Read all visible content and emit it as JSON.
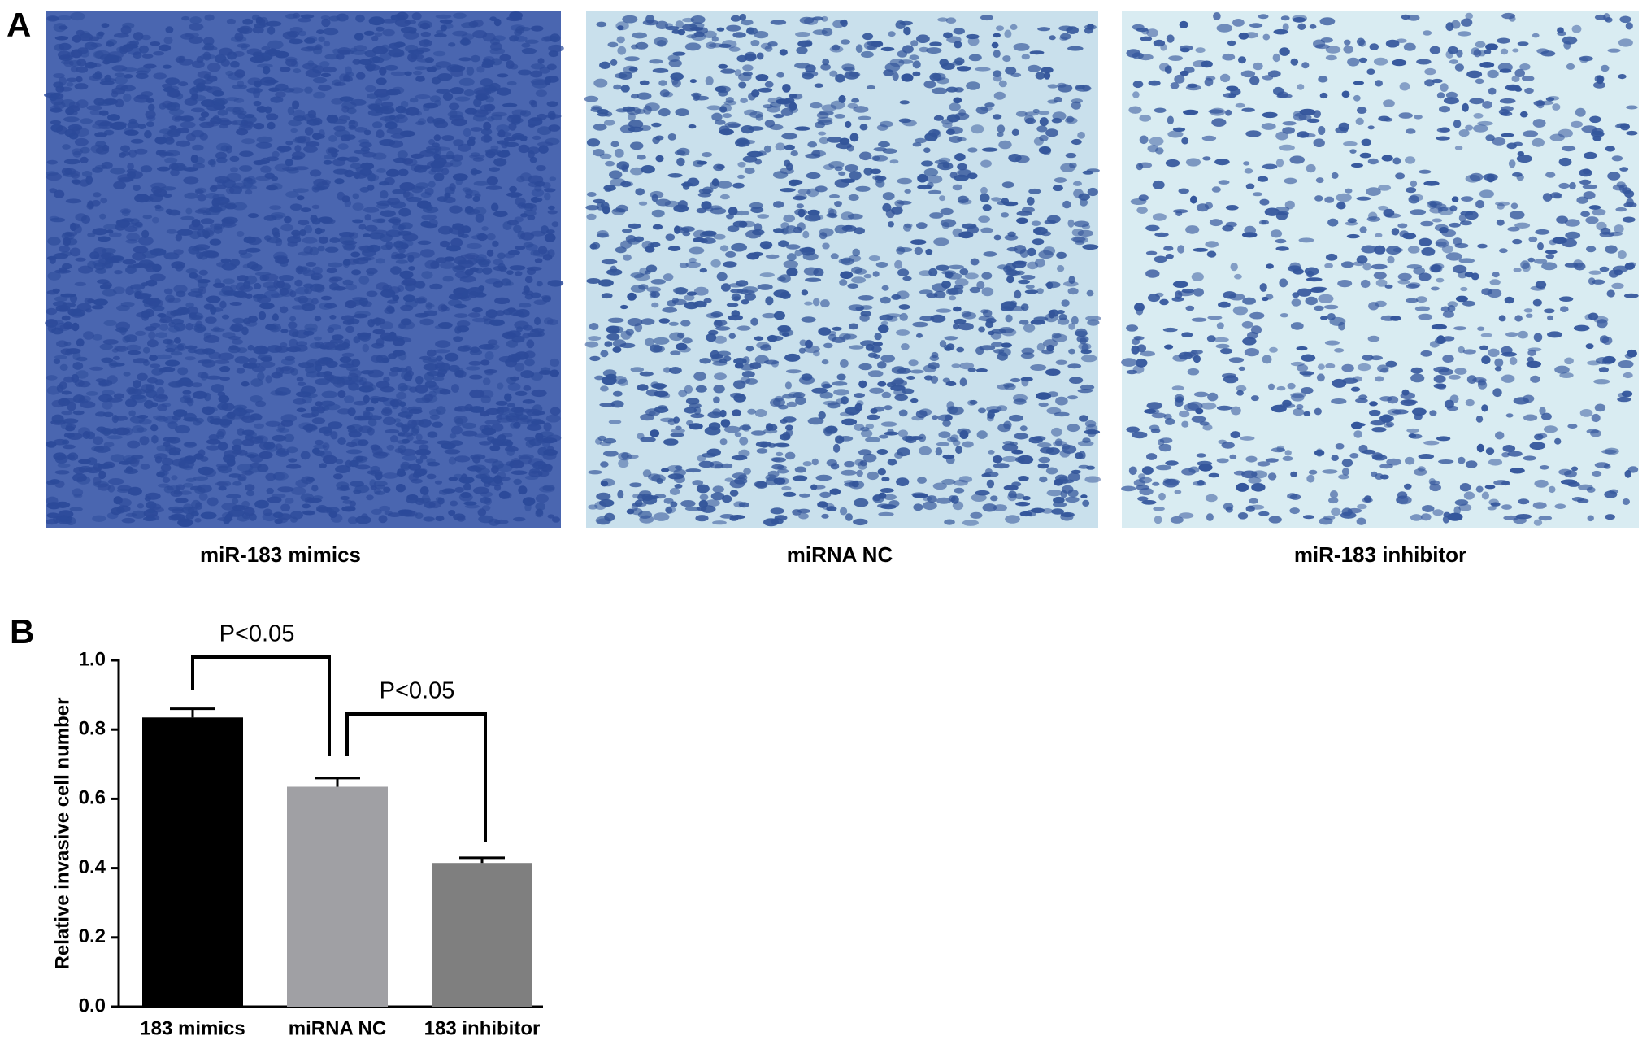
{
  "panel_a": {
    "label": "A",
    "captions": [
      "miR-183 mimics",
      "miRNA NC",
      "miR-183 inhibitor"
    ]
  },
  "panel_b": {
    "label": "B"
  },
  "chart_data": {
    "type": "bar",
    "y_label": "Relative invasive  cell number",
    "categories": [
      "183 mimics",
      "miRNA NC",
      "183 inhibitor"
    ],
    "values": [
      0.835,
      0.635,
      0.415
    ],
    "errors": [
      0.025,
      0.025,
      0.015
    ],
    "colors": [
      "#000000",
      "#a0a0a4",
      "#7f7f7f"
    ],
    "ylim": [
      0,
      1.0
    ],
    "yticks": [
      {
        "value": 0,
        "label": "0.0"
      },
      0.2,
      0.4,
      0.6,
      0.8,
      {
        "value": 1.0,
        "label": "1.0"
      }
    ],
    "annotations": [
      "P<0.05",
      "P<0.05"
    ]
  }
}
